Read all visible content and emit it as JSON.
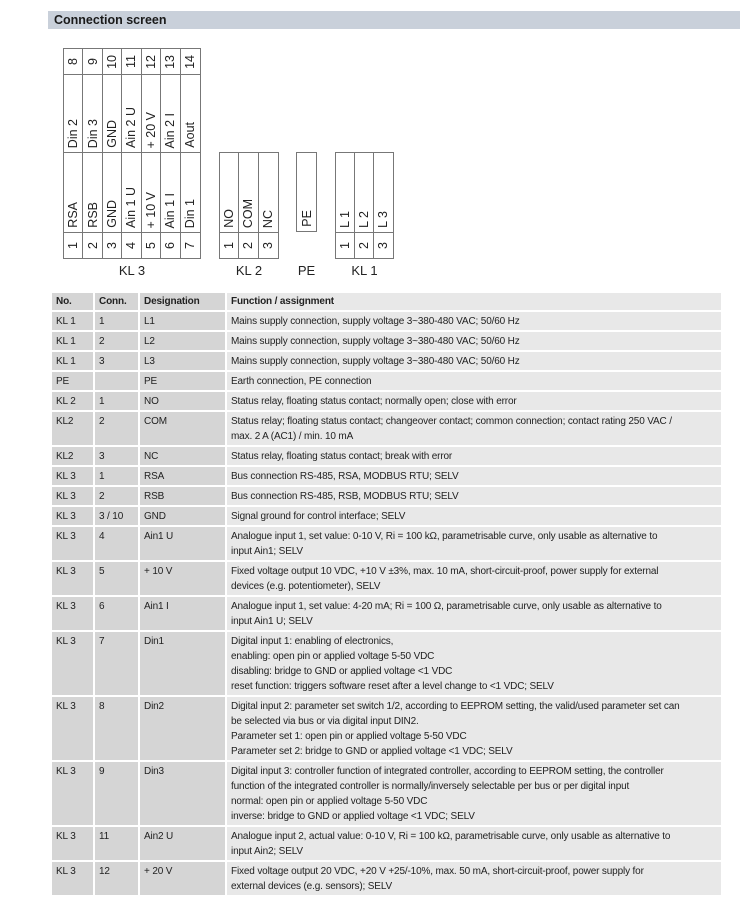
{
  "title": "Connection screen",
  "diagram": {
    "kl3": {
      "label": "KL 3",
      "top": [
        {
          "n": "8",
          "s": "Din 2"
        },
        {
          "n": "9",
          "s": "Din 3"
        },
        {
          "n": "10",
          "s": "GND"
        },
        {
          "n": "11",
          "s": "Ain 2 U"
        },
        {
          "n": "12",
          "s": "+ 20 V"
        },
        {
          "n": "13",
          "s": "Ain 2 I"
        },
        {
          "n": "14",
          "s": "Aout"
        }
      ],
      "bottom": [
        {
          "n": "1",
          "s": "RSA"
        },
        {
          "n": "2",
          "s": "RSB"
        },
        {
          "n": "3",
          "s": "GND"
        },
        {
          "n": "4",
          "s": "Ain 1 U"
        },
        {
          "n": "5",
          "s": "+ 10 V"
        },
        {
          "n": "6",
          "s": "Ain 1 I"
        },
        {
          "n": "7",
          "s": "Din 1"
        }
      ]
    },
    "kl2": {
      "label": "KL 2",
      "pins": [
        {
          "n": "1",
          "s": "NO"
        },
        {
          "n": "2",
          "s": "COM"
        },
        {
          "n": "3",
          "s": "NC"
        }
      ]
    },
    "pe": {
      "label": "PE",
      "pin": "PE"
    },
    "kl1": {
      "label": "KL 1",
      "pins": [
        {
          "n": "1",
          "s": "L 1"
        },
        {
          "n": "2",
          "s": "L 2"
        },
        {
          "n": "3",
          "s": "L 3"
        }
      ]
    }
  },
  "table": {
    "headers": [
      "No.",
      "Conn.",
      "Designation",
      "Function / assignment"
    ],
    "rows": [
      [
        "KL 1",
        "1",
        "L1",
        "Mains supply connection, supply voltage 3~380-480 VAC; 50/60 Hz"
      ],
      [
        "KL 1",
        "2",
        "L2",
        "Mains supply connection, supply voltage 3~380-480 VAC; 50/60 Hz"
      ],
      [
        "KL 1",
        "3",
        "L3",
        "Mains supply connection, supply voltage 3~380-480 VAC; 50/60 Hz"
      ],
      [
        "PE",
        "",
        "PE",
        "Earth connection, PE connection"
      ],
      [
        "KL 2",
        "1",
        "NO",
        "Status relay, floating status contact; normally open; close with error"
      ],
      [
        "KL2",
        "2",
        "COM",
        "Status relay; floating status contact; changeover contact; common connection; contact rating 250 VAC /\nmax. 2 A (AC1) / min. 10 mA"
      ],
      [
        "KL2",
        "3",
        "NC",
        "Status relay, floating status contact; break with error"
      ],
      [
        "KL 3",
        "1",
        "RSA",
        "Bus connection RS-485, RSA, MODBUS RTU; SELV"
      ],
      [
        "KL 3",
        "2",
        "RSB",
        "Bus connection RS-485, RSB, MODBUS RTU; SELV"
      ],
      [
        "KL 3",
        "3 / 10",
        "GND",
        "Signal ground for control interface; SELV"
      ],
      [
        "KL 3",
        "4",
        "Ain1 U",
        "Analogue input 1, set value: 0-10 V, Ri = 100 kΩ, parametrisable curve, only usable as alternative to\ninput Ain1; SELV"
      ],
      [
        "KL 3",
        "5",
        "+ 10 V",
        "Fixed voltage output 10 VDC, +10 V ±3%, max. 10 mA, short-circuit-proof, power supply for external\ndevices (e.g. potentiometer), SELV"
      ],
      [
        "KL 3",
        "6",
        "Ain1 I",
        "Analogue input 1, set value: 4-20 mA; Ri = 100 Ω, parametrisable curve, only usable as alternative to\ninput Ain1 U; SELV"
      ],
      [
        "KL 3",
        "7",
        "Din1",
        "Digital input 1: enabling of electronics,\nenabling: open pin or applied voltage 5-50 VDC\ndisabling: bridge to GND or applied voltage <1 VDC\nreset function: triggers software reset after a level change to <1 VDC; SELV"
      ],
      [
        "KL 3",
        "8",
        "Din2",
        "Digital input 2: parameter set switch 1/2, according to EEPROM setting, the valid/used parameter set can\nbe selected via bus or via digital input DIN2.\nParameter set 1: open pin or applied voltage 5-50 VDC\nParameter set 2: bridge to GND or applied voltage <1 VDC; SELV"
      ],
      [
        "KL 3",
        "9",
        "Din3",
        "Digital input 3: controller function of integrated controller, according to EEPROM setting, the controller\nfunction of the integrated controller is normally/inversely selectable per bus or per digital input\nnormal: open pin or applied voltage 5-50 VDC\ninverse: bridge to GND or applied voltage <1 VDC; SELV"
      ],
      [
        "KL 3",
        "11",
        "Ain2 U",
        "Analogue input 2, actual value: 0-10 V, Ri = 100 kΩ, parametrisable curve, only usable as alternative to\ninput Ain2; SELV"
      ],
      [
        "KL 3",
        "12",
        "+ 20 V",
        "Fixed voltage output 20 VDC, +20 V +25/-10%, max. 50 mA, short-circuit-proof, power supply for\nexternal devices (e.g. sensors); SELV"
      ]
    ]
  }
}
